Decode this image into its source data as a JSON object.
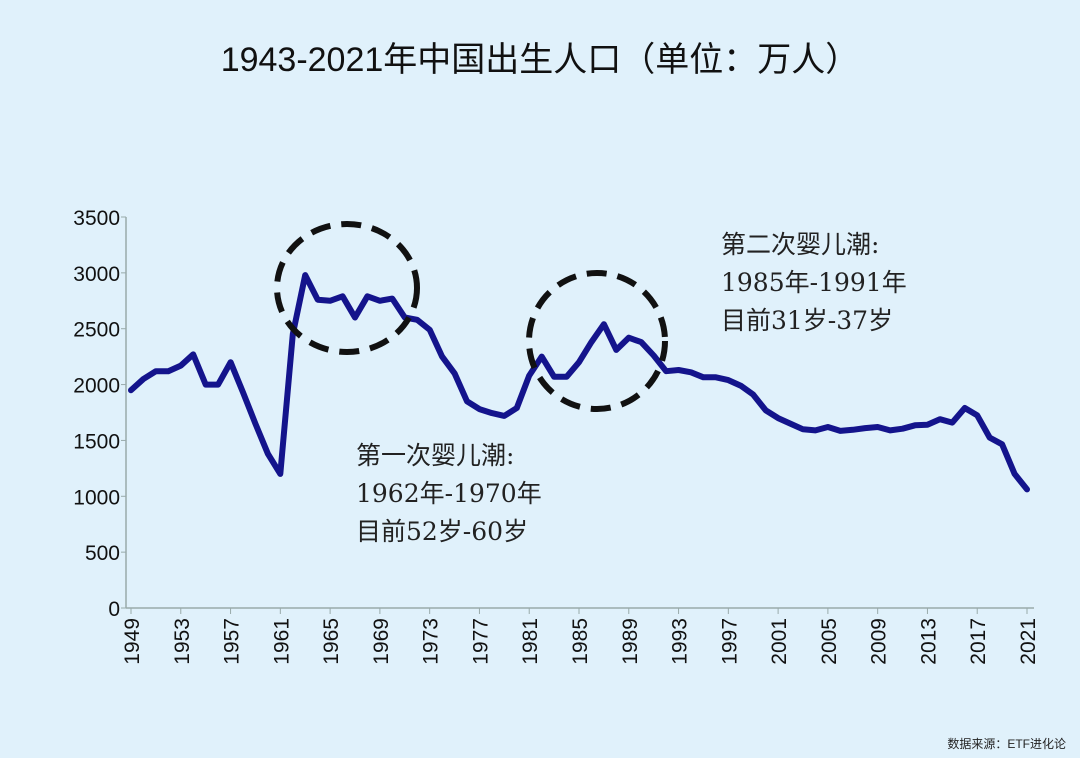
{
  "chart_data": {
    "type": "line",
    "title": "1943-2021年中国出生人口（单位：万人）",
    "xlabel": "",
    "ylabel": "",
    "ylim": [
      0,
      3500
    ],
    "xlim": [
      1949,
      2021
    ],
    "yticks": [
      0,
      500,
      1000,
      1500,
      2000,
      2500,
      3000,
      3500
    ],
    "xticks": [
      1949,
      1953,
      1957,
      1961,
      1965,
      1969,
      1973,
      1977,
      1981,
      1985,
      1989,
      1993,
      1997,
      2001,
      2005,
      2009,
      2013,
      2017,
      2021
    ],
    "grid": false,
    "series": [
      {
        "name": "出生人口",
        "color": "#14148c",
        "x": [
          1949,
          1950,
          1951,
          1952,
          1953,
          1954,
          1955,
          1956,
          1957,
          1958,
          1959,
          1960,
          1961,
          1962,
          1963,
          1964,
          1965,
          1966,
          1967,
          1968,
          1969,
          1970,
          1971,
          1972,
          1973,
          1974,
          1975,
          1976,
          1977,
          1978,
          1979,
          1980,
          1981,
          1982,
          1983,
          1984,
          1985,
          1986,
          1987,
          1988,
          1989,
          1990,
          1991,
          1992,
          1993,
          1994,
          1995,
          1996,
          1997,
          1998,
          1999,
          2000,
          2001,
          2002,
          2003,
          2004,
          2005,
          2006,
          2007,
          2008,
          2009,
          2010,
          2011,
          2012,
          2013,
          2014,
          2015,
          2016,
          2017,
          2018,
          2019,
          2020,
          2021
        ],
        "values": [
          1950,
          2050,
          2120,
          2120,
          2170,
          2270,
          2000,
          2000,
          2200,
          1930,
          1650,
          1380,
          1200,
          2450,
          2980,
          2760,
          2750,
          2790,
          2600,
          2790,
          2750,
          2770,
          2600,
          2580,
          2490,
          2250,
          2100,
          1850,
          1780,
          1745,
          1720,
          1790,
          2080,
          2250,
          2070,
          2070,
          2200,
          2380,
          2540,
          2310,
          2420,
          2380,
          2260,
          2120,
          2130,
          2110,
          2065,
          2065,
          2040,
          1990,
          1910,
          1770,
          1700,
          1650,
          1600,
          1590,
          1620,
          1585,
          1595,
          1610,
          1620,
          1590,
          1605,
          1635,
          1640,
          1690,
          1660,
          1790,
          1725,
          1525,
          1465,
          1200,
          1062
        ]
      }
    ],
    "annotations": [
      {
        "lines": [
          "第一次婴儿潮:",
          "1962年-1970年",
          "目前52岁-60岁"
        ],
        "highlight_years": [
          1962,
          1970
        ]
      },
      {
        "lines": [
          "第二次婴儿潮:",
          "1985年-1991年",
          "目前31岁-37岁"
        ],
        "highlight_years": [
          1985,
          1991
        ]
      }
    ]
  },
  "source": "数据来源：ETF进化论"
}
